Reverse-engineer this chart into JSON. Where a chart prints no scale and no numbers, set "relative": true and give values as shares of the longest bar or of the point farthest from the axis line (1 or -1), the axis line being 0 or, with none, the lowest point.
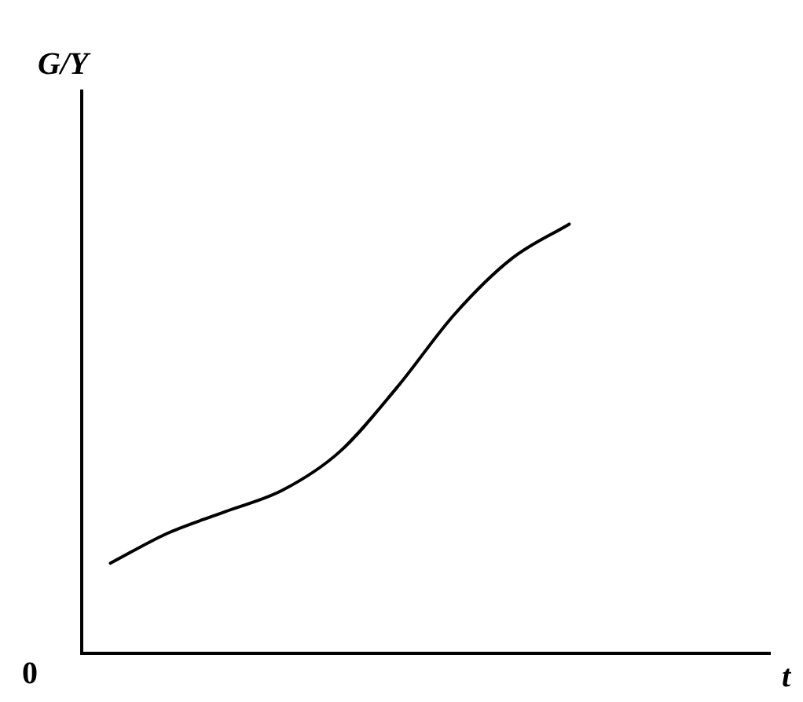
{
  "chart_data": {
    "type": "line",
    "relative": true,
    "xlabel": "t",
    "ylabel": "G/Y",
    "annotations": [
      "0"
    ],
    "categories": [
      null,
      null,
      null,
      null,
      null,
      null,
      null,
      null,
      null,
      null,
      null,
      null
    ],
    "series": [
      {
        "color": "#000000",
        "values": [
          0.21,
          0.28,
          0.33,
          0.38,
          0.47,
          0.62,
          0.79,
          0.92,
          1,
          null,
          null,
          null
        ]
      }
    ],
    "grid": false,
    "legend": false,
    "marker": "none",
    "line_style": "solid"
  }
}
